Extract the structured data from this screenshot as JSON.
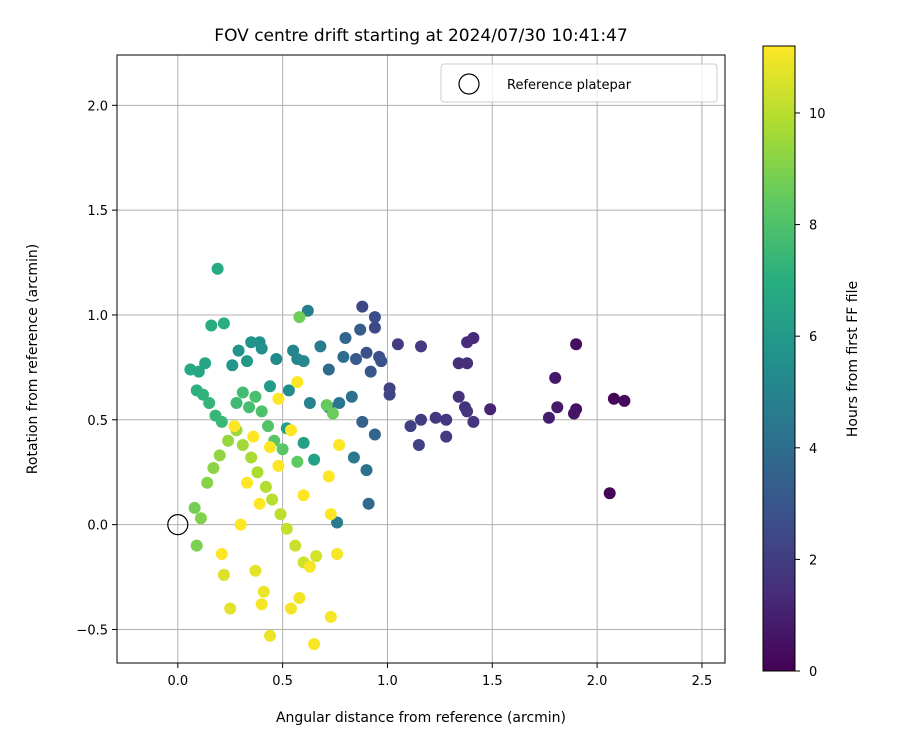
{
  "chart_data": {
    "type": "scatter",
    "title": "FOV centre drift starting at 2024/07/30 10:41:47",
    "xlabel": "Angular distance from reference (arcmin)",
    "ylabel": "Rotation from reference (arcmin)",
    "xlim": [
      -0.29,
      2.61
    ],
    "ylim": [
      -0.66,
      2.24
    ],
    "xticks": [
      0.0,
      0.5,
      1.0,
      1.5,
      2.0,
      2.5
    ],
    "xtick_labels": [
      "0.0",
      "0.5",
      "1.0",
      "1.5",
      "2.0",
      "2.5"
    ],
    "yticks": [
      -0.5,
      0.0,
      0.5,
      1.0,
      1.5,
      2.0
    ],
    "ytick_labels": [
      "−0.5",
      "0.0",
      "0.5",
      "1.0",
      "1.5",
      "2.0"
    ],
    "grid": true,
    "legend": {
      "placement": "top-right",
      "entries": [
        "Reference platepar"
      ]
    },
    "reference_point": {
      "x": 0.0,
      "y": 0.0,
      "label": "Reference platepar"
    },
    "colorbar": {
      "label": "Hours from first FF file",
      "colormap": "viridis",
      "range": [
        0,
        11.2
      ],
      "ticks": [
        0,
        2,
        4,
        6,
        8,
        10
      ],
      "tick_labels": [
        "0",
        "2",
        "4",
        "6",
        "8",
        "10"
      ]
    },
    "series": [
      {
        "points": [
          [
            2.06,
            0.15,
            0.1
          ],
          [
            2.08,
            0.6,
            0.2
          ],
          [
            2.13,
            0.59,
            0.3
          ],
          [
            1.9,
            0.86,
            0.4
          ],
          [
            1.9,
            0.55,
            0.5
          ],
          [
            1.89,
            0.53,
            0.6
          ],
          [
            1.8,
            0.7,
            0.7
          ],
          [
            1.81,
            0.56,
            0.8
          ],
          [
            1.77,
            0.51,
            0.9
          ],
          [
            1.49,
            0.55,
            1.1
          ],
          [
            1.41,
            0.89,
            1.3
          ],
          [
            1.38,
            0.87,
            1.4
          ],
          [
            1.38,
            0.77,
            1.5
          ],
          [
            1.34,
            0.77,
            1.5
          ],
          [
            1.34,
            0.61,
            1.6
          ],
          [
            1.37,
            0.56,
            1.6
          ],
          [
            1.38,
            0.54,
            1.7
          ],
          [
            1.41,
            0.49,
            1.7
          ],
          [
            1.28,
            0.5,
            1.8
          ],
          [
            1.23,
            0.51,
            1.8
          ],
          [
            1.28,
            0.42,
            1.9
          ],
          [
            1.16,
            0.85,
            1.9
          ],
          [
            1.05,
            0.86,
            2.0
          ],
          [
            1.16,
            0.5,
            2.0
          ],
          [
            1.11,
            0.47,
            2.1
          ],
          [
            1.15,
            0.38,
            2.2
          ],
          [
            1.01,
            0.65,
            2.2
          ],
          [
            1.01,
            0.62,
            2.3
          ],
          [
            0.88,
            1.04,
            2.4
          ],
          [
            0.94,
            0.94,
            2.5
          ],
          [
            0.94,
            0.99,
            2.6
          ],
          [
            0.96,
            0.8,
            2.7
          ],
          [
            0.97,
            0.78,
            2.8
          ],
          [
            0.9,
            0.82,
            2.9
          ],
          [
            0.92,
            0.73,
            3.0
          ],
          [
            0.85,
            0.79,
            3.2
          ],
          [
            0.87,
            0.93,
            3.3
          ],
          [
            0.88,
            0.49,
            3.5
          ],
          [
            0.94,
            0.43,
            3.6
          ],
          [
            0.8,
            0.89,
            3.7
          ],
          [
            0.91,
            0.1,
            3.8
          ],
          [
            0.72,
            0.74,
            3.9
          ],
          [
            0.79,
            0.8,
            4.0
          ],
          [
            0.83,
            0.61,
            4.1
          ],
          [
            0.9,
            0.26,
            4.2
          ],
          [
            0.72,
            0.56,
            4.3
          ],
          [
            0.77,
            0.58,
            4.4
          ],
          [
            0.84,
            0.32,
            4.5
          ],
          [
            0.76,
            0.01,
            4.6
          ],
          [
            0.68,
            0.85,
            4.7
          ],
          [
            0.62,
            1.02,
            4.8
          ],
          [
            0.63,
            0.58,
            4.9
          ],
          [
            0.55,
            0.83,
            5.0
          ],
          [
            0.57,
            0.79,
            5.1
          ],
          [
            0.6,
            0.78,
            5.2
          ],
          [
            0.47,
            0.79,
            5.3
          ],
          [
            0.53,
            0.64,
            5.4
          ],
          [
            0.4,
            0.84,
            5.5
          ],
          [
            0.39,
            0.87,
            5.6
          ],
          [
            0.35,
            0.87,
            5.7
          ],
          [
            0.29,
            0.83,
            5.8
          ],
          [
            0.26,
            0.76,
            5.9
          ],
          [
            0.33,
            0.78,
            6.0
          ],
          [
            0.44,
            0.66,
            6.1
          ],
          [
            0.52,
            0.46,
            6.2
          ],
          [
            0.6,
            0.39,
            6.3
          ],
          [
            0.65,
            0.31,
            6.4
          ],
          [
            0.13,
            0.77,
            6.5
          ],
          [
            0.1,
            0.73,
            6.6
          ],
          [
            0.06,
            0.74,
            6.7
          ],
          [
            0.19,
            1.22,
            6.8
          ],
          [
            0.16,
            0.95,
            6.9
          ],
          [
            0.22,
            0.96,
            7.0
          ],
          [
            0.09,
            0.64,
            7.1
          ],
          [
            0.12,
            0.62,
            7.2
          ],
          [
            0.15,
            0.58,
            7.3
          ],
          [
            0.18,
            0.52,
            7.4
          ],
          [
            0.21,
            0.49,
            7.5
          ],
          [
            0.28,
            0.58,
            7.6
          ],
          [
            0.31,
            0.63,
            7.7
          ],
          [
            0.34,
            0.56,
            7.8
          ],
          [
            0.37,
            0.61,
            7.9
          ],
          [
            0.4,
            0.54,
            8.0
          ],
          [
            0.43,
            0.47,
            8.1
          ],
          [
            0.46,
            0.4,
            8.2
          ],
          [
            0.5,
            0.36,
            8.3
          ],
          [
            0.57,
            0.3,
            8.4
          ],
          [
            0.71,
            0.57,
            8.5
          ],
          [
            0.74,
            0.53,
            8.6
          ],
          [
            0.58,
            0.99,
            8.7
          ],
          [
            0.08,
            0.08,
            8.8
          ],
          [
            0.09,
            -0.1,
            8.9
          ],
          [
            0.11,
            0.03,
            9.0
          ],
          [
            0.14,
            0.2,
            9.1
          ],
          [
            0.17,
            0.27,
            9.2
          ],
          [
            0.2,
            0.33,
            9.3
          ],
          [
            0.24,
            0.4,
            9.4
          ],
          [
            0.28,
            0.45,
            9.5
          ],
          [
            0.31,
            0.38,
            9.6
          ],
          [
            0.35,
            0.32,
            9.7
          ],
          [
            0.38,
            0.25,
            9.8
          ],
          [
            0.42,
            0.18,
            9.9
          ],
          [
            0.45,
            0.12,
            10.0
          ],
          [
            0.49,
            0.05,
            10.1
          ],
          [
            0.52,
            -0.02,
            10.2
          ],
          [
            0.56,
            -0.1,
            10.3
          ],
          [
            0.6,
            -0.18,
            10.4
          ],
          [
            0.66,
            -0.15,
            10.5
          ],
          [
            0.22,
            -0.24,
            10.6
          ],
          [
            0.25,
            -0.4,
            10.7
          ],
          [
            0.37,
            -0.22,
            10.8
          ],
          [
            0.41,
            -0.32,
            10.9
          ],
          [
            0.44,
            -0.53,
            10.9
          ],
          [
            0.54,
            -0.4,
            11.0
          ],
          [
            0.58,
            -0.35,
            11.0
          ],
          [
            0.73,
            -0.44,
            11.1
          ],
          [
            0.65,
            -0.57,
            11.1
          ],
          [
            0.4,
            -0.38,
            11.1
          ],
          [
            0.63,
            -0.2,
            11.1
          ],
          [
            0.76,
            -0.14,
            11.1
          ],
          [
            0.21,
            -0.14,
            11.2
          ],
          [
            0.3,
            0.0,
            11.2
          ],
          [
            0.27,
            0.47,
            11.2
          ],
          [
            0.33,
            0.2,
            11.2
          ],
          [
            0.39,
            0.1,
            11.2
          ],
          [
            0.48,
            0.6,
            11.2
          ],
          [
            0.57,
            0.68,
            11.2
          ],
          [
            0.48,
            0.28,
            11.2
          ],
          [
            0.6,
            0.14,
            11.2
          ],
          [
            0.73,
            0.05,
            11.2
          ],
          [
            0.77,
            0.38,
            11.2
          ],
          [
            0.72,
            0.23,
            11.2
          ],
          [
            0.54,
            0.45,
            11.2
          ],
          [
            0.44,
            0.37,
            11.2
          ],
          [
            0.36,
            0.42,
            11.2
          ]
        ]
      }
    ]
  }
}
